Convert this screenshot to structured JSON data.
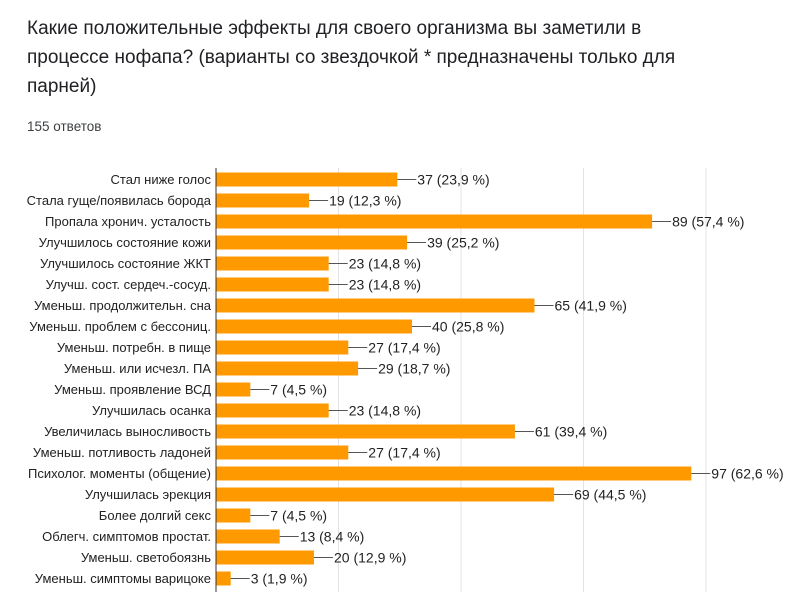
{
  "question": {
    "title": "Какие положительные эффекты для своего организма вы заметили в процессе нофапа? (варианты со звездочкой * предназначены только для парней)",
    "response_count": "155 ответов"
  },
  "colors": {
    "bar": "#ff9900",
    "grid": "#e3e3e3",
    "axis": "#333333",
    "text": "#222222"
  },
  "chart_data": {
    "type": "bar",
    "orientation": "horizontal",
    "title": "",
    "xlabel": "",
    "ylabel": "",
    "xlim": [
      0,
      125
    ],
    "grid": true,
    "legend": "none",
    "categories": [
      "Стал ниже голос",
      "Стала гуще/появилась борода",
      "Пропала хронич. усталость",
      "Улучшилось состояние кожи",
      "Улучшилось состояние ЖКТ",
      "Улучш. сост. сердеч.-сосуд.",
      "Уменьш. продолжительн. сна",
      "Уменьш. проблем с бессониц.",
      "Уменьш. потребн. в пище",
      "Уменьш. или исчезл. ПА",
      "Уменьш. проявление ВСД",
      "Улучшилась осанка",
      "Увеличилась выносливость",
      "Уменьш. потливость ладоней",
      "Психолог. моменты (общение)",
      "Улучшилась эрекция",
      "Более долгий секс",
      "Облегч. симптомов простат.",
      "Уменьш. светобоязнь",
      "Уменьш. симптомы варицоке"
    ],
    "values": [
      37,
      19,
      89,
      39,
      23,
      23,
      65,
      40,
      27,
      29,
      7,
      23,
      61,
      27,
      97,
      69,
      7,
      13,
      20,
      3
    ],
    "value_labels": [
      "37 (23,9 %)",
      "19 (12,3 %)",
      "89 (57,4 %)",
      "39 (25,2 %)",
      "23 (14,8 %)",
      "23 (14,8 %)",
      "65 (41,9 %)",
      "40 (25,8 %)",
      "27 (17,4 %)",
      "29 (18,7 %)",
      "7 (4,5 %)",
      "23 (14,8 %)",
      "61 (39,4 %)",
      "27 (17,4 %)",
      "97 (62,6 %)",
      "69 (44,5 %)",
      "7 (4,5 %)",
      "13 (8,4 %)",
      "20 (12,9 %)",
      "3 (1,9 %)"
    ]
  }
}
